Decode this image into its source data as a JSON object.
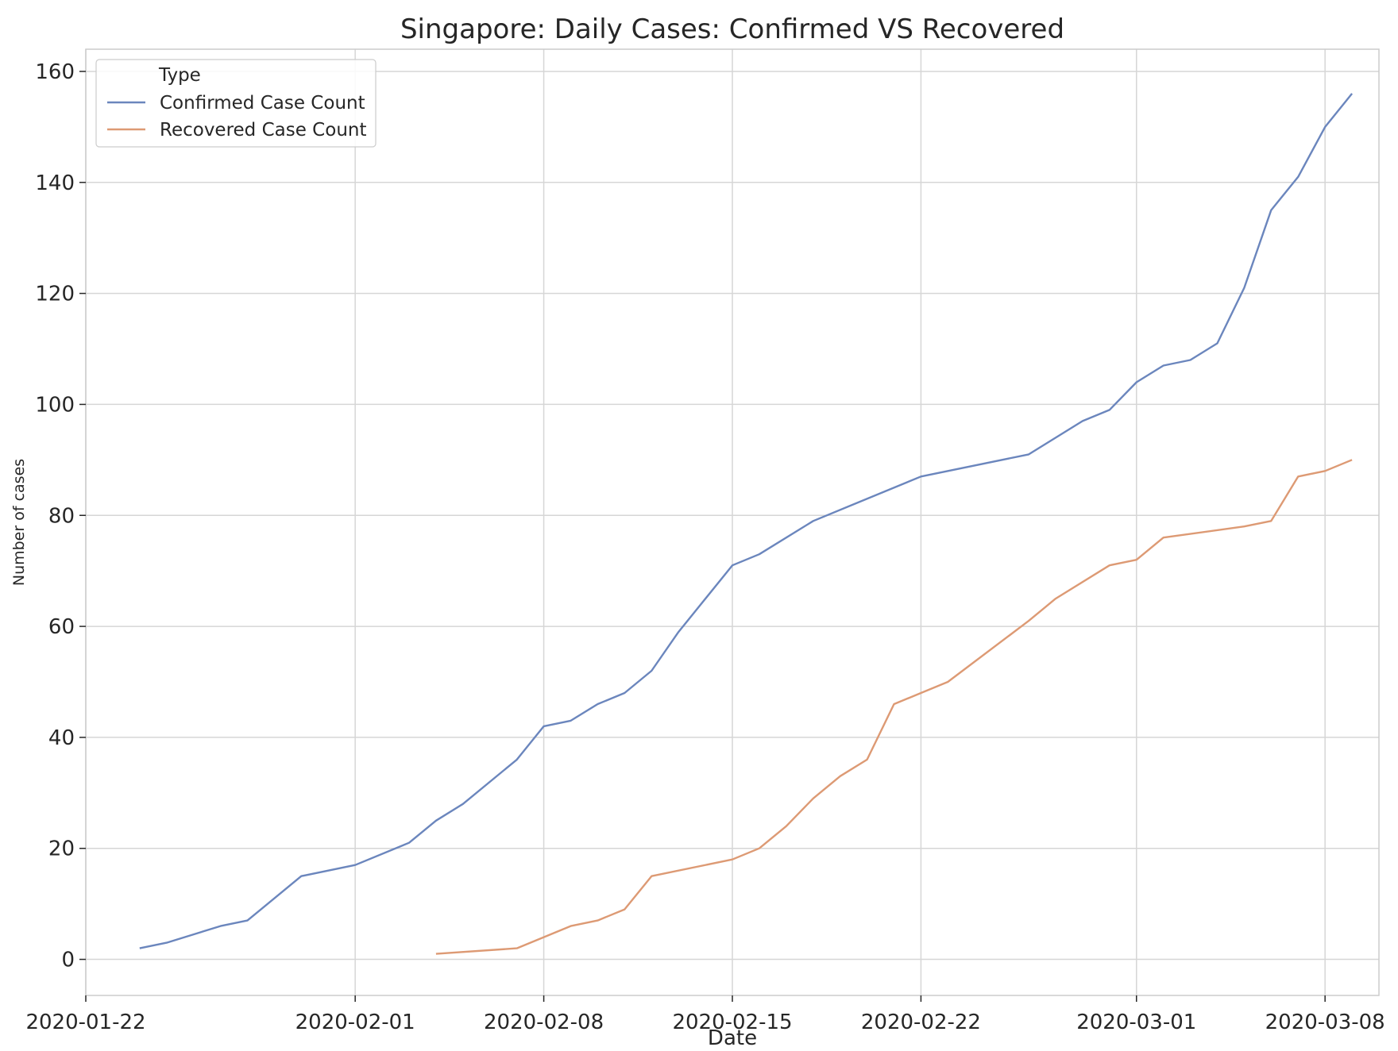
{
  "chart_data": {
    "type": "line",
    "title": "Singapore: Daily Cases: Confirmed VS Recovered",
    "xlabel": "Date",
    "ylabel": "Number of cases",
    "x_range": [
      "2020-01-22",
      "2020-03-10"
    ],
    "ylim": [
      -6.5,
      164
    ],
    "x_ticks": [
      "2020-01-22",
      "2020-02-01",
      "2020-02-08",
      "2020-02-15",
      "2020-02-22",
      "2020-03-01",
      "2020-03-08"
    ],
    "y_ticks": [
      0,
      20,
      40,
      60,
      80,
      100,
      120,
      140,
      160
    ],
    "grid": true,
    "legend": {
      "title": "Type",
      "position": "top-left"
    },
    "series": [
      {
        "name": "Confirmed Case Count",
        "color": "#6b86bd",
        "points": [
          [
            "2020-01-24",
            2
          ],
          [
            "2020-01-25",
            3
          ],
          [
            "2020-01-26",
            4.5
          ],
          [
            "2020-01-27",
            6
          ],
          [
            "2020-01-28",
            7
          ],
          [
            "2020-01-30",
            15
          ],
          [
            "2020-02-01",
            17
          ],
          [
            "2020-02-03",
            21
          ],
          [
            "2020-02-04",
            25
          ],
          [
            "2020-02-05",
            28
          ],
          [
            "2020-02-07",
            36
          ],
          [
            "2020-02-08",
            42
          ],
          [
            "2020-02-09",
            43
          ],
          [
            "2020-02-10",
            46
          ],
          [
            "2020-02-11",
            48
          ],
          [
            "2020-02-12",
            52
          ],
          [
            "2020-02-13",
            59
          ],
          [
            "2020-02-15",
            71
          ],
          [
            "2020-02-16",
            73
          ],
          [
            "2020-02-18",
            79
          ],
          [
            "2020-02-22",
            87
          ],
          [
            "2020-02-26",
            91
          ],
          [
            "2020-02-28",
            97
          ],
          [
            "2020-02-29",
            99
          ],
          [
            "2020-03-01",
            104
          ],
          [
            "2020-03-02",
            107
          ],
          [
            "2020-03-03",
            108
          ],
          [
            "2020-03-04",
            111
          ],
          [
            "2020-03-05",
            121
          ],
          [
            "2020-03-06",
            135
          ],
          [
            "2020-03-07",
            141
          ],
          [
            "2020-03-08",
            150
          ],
          [
            "2020-03-09",
            156
          ]
        ]
      },
      {
        "name": "Recovered Case Count",
        "color": "#dd9a74",
        "points": [
          [
            "2020-02-04",
            1
          ],
          [
            "2020-02-07",
            2
          ],
          [
            "2020-02-09",
            6
          ],
          [
            "2020-02-10",
            7
          ],
          [
            "2020-02-11",
            9
          ],
          [
            "2020-02-12",
            15
          ],
          [
            "2020-02-15",
            18
          ],
          [
            "2020-02-16",
            20
          ],
          [
            "2020-02-17",
            24
          ],
          [
            "2020-02-18",
            29
          ],
          [
            "2020-02-19",
            33
          ],
          [
            "2020-02-20",
            36
          ],
          [
            "2020-02-21",
            46
          ],
          [
            "2020-02-22",
            48
          ],
          [
            "2020-02-23",
            50
          ],
          [
            "2020-02-26",
            61
          ],
          [
            "2020-02-27",
            65
          ],
          [
            "2020-02-29",
            71
          ],
          [
            "2020-03-01",
            72
          ],
          [
            "2020-03-02",
            76
          ],
          [
            "2020-03-05",
            78
          ],
          [
            "2020-03-06",
            79
          ],
          [
            "2020-03-07",
            87
          ],
          [
            "2020-03-08",
            88
          ],
          [
            "2020-03-09",
            90
          ]
        ]
      }
    ]
  }
}
